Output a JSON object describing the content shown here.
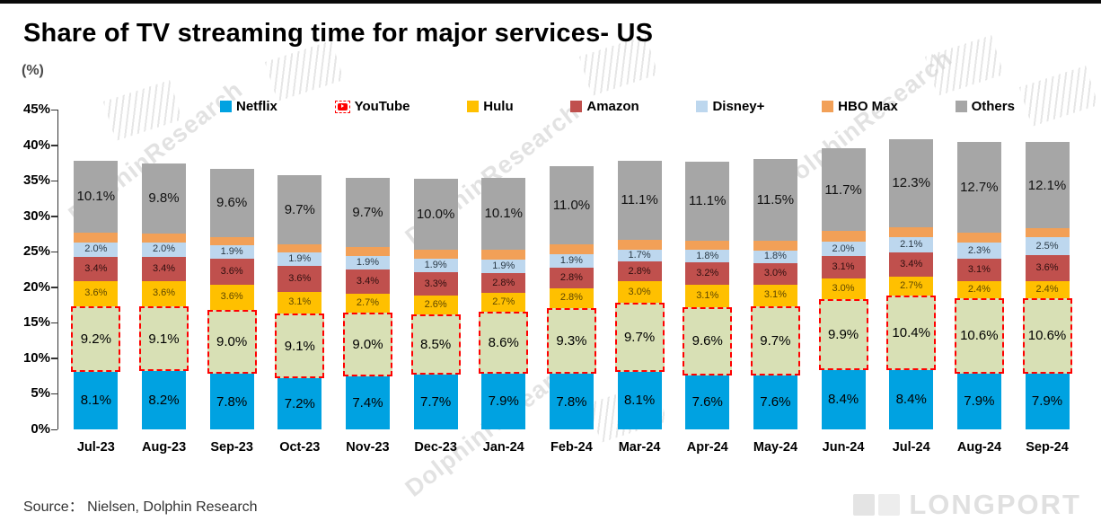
{
  "title": "Share of TV streaming time for major services- US",
  "unit_label": "(%)",
  "source": "Source： Nielsen, Dolphin Research",
  "watermark_text": "DolphinResearch",
  "brand_text": "LONGPORT",
  "chart_data": {
    "type": "bar",
    "stacked": true,
    "title": "Share of TV streaming time for major services- US",
    "unit": "%",
    "ylim": [
      0,
      45
    ],
    "ytick_step": 5,
    "yticks": [
      "0%",
      "5%",
      "10%",
      "15%",
      "20%",
      "25%",
      "30%",
      "35%",
      "40%",
      "45%"
    ],
    "grid": false,
    "legend_position": "top",
    "categories": [
      "Jul-23",
      "Aug-23",
      "Sep-23",
      "Oct-23",
      "Nov-23",
      "Dec-23",
      "Jan-24",
      "Feb-24",
      "Mar-24",
      "Apr-24",
      "May-24",
      "Jun-24",
      "Jul-24",
      "Aug-24",
      "Sep-24"
    ],
    "series": [
      {
        "name": "Netflix",
        "color": "#00A2E1",
        "label_color": "#000000",
        "label_size": 15,
        "show_labels": true,
        "values": [
          8.1,
          8.2,
          7.8,
          7.2,
          7.4,
          7.7,
          7.9,
          7.8,
          8.1,
          7.6,
          7.6,
          8.4,
          8.4,
          7.9,
          7.9
        ]
      },
      {
        "name": "YouTube",
        "color": "#D8E0B5",
        "highlight_border": "#FF0000",
        "label_color": "#000000",
        "label_size": 15,
        "show_labels": true,
        "values": [
          9.2,
          9.1,
          9.0,
          9.1,
          9.0,
          8.5,
          8.6,
          9.3,
          9.7,
          9.6,
          9.7,
          9.9,
          10.4,
          10.6,
          10.6
        ]
      },
      {
        "name": "Hulu",
        "color": "#FFC000",
        "label_color": "#5f4700",
        "label_size": 11,
        "show_labels": true,
        "values": [
          3.6,
          3.6,
          3.6,
          3.1,
          2.7,
          2.6,
          2.7,
          2.8,
          3.0,
          3.1,
          3.1,
          3.0,
          2.7,
          2.4,
          2.4
        ]
      },
      {
        "name": "Amazon",
        "color": "#C0504D",
        "label_color": "#2e0f0f",
        "label_size": 11,
        "show_labels": true,
        "values": [
          3.4,
          3.4,
          3.6,
          3.6,
          3.4,
          3.3,
          2.8,
          2.8,
          2.8,
          3.2,
          3.0,
          3.1,
          3.4,
          3.1,
          3.6
        ]
      },
      {
        "name": "Disney+",
        "color": "#BDD7EE",
        "label_color": "#2b3a46",
        "label_size": 11,
        "show_labels": true,
        "values": [
          2.0,
          2.0,
          1.9,
          1.9,
          1.9,
          1.9,
          1.9,
          1.9,
          1.7,
          1.8,
          1.8,
          2.0,
          2.1,
          2.3,
          2.5
        ]
      },
      {
        "name": "HBO Max",
        "color": "#F2A057",
        "show_labels": false,
        "estimated": true,
        "values": [
          1.4,
          1.3,
          1.2,
          1.2,
          1.3,
          1.3,
          1.4,
          1.4,
          1.4,
          1.3,
          1.3,
          1.5,
          1.5,
          1.4,
          1.3
        ]
      },
      {
        "name": "Others",
        "color": "#A6A6A6",
        "label_color": "#111111",
        "label_size": 15,
        "show_labels": true,
        "values": [
          10.1,
          9.8,
          9.6,
          9.7,
          9.7,
          10.0,
          10.1,
          11.0,
          11.1,
          11.1,
          11.5,
          11.7,
          12.3,
          12.7,
          12.1
        ]
      }
    ]
  }
}
